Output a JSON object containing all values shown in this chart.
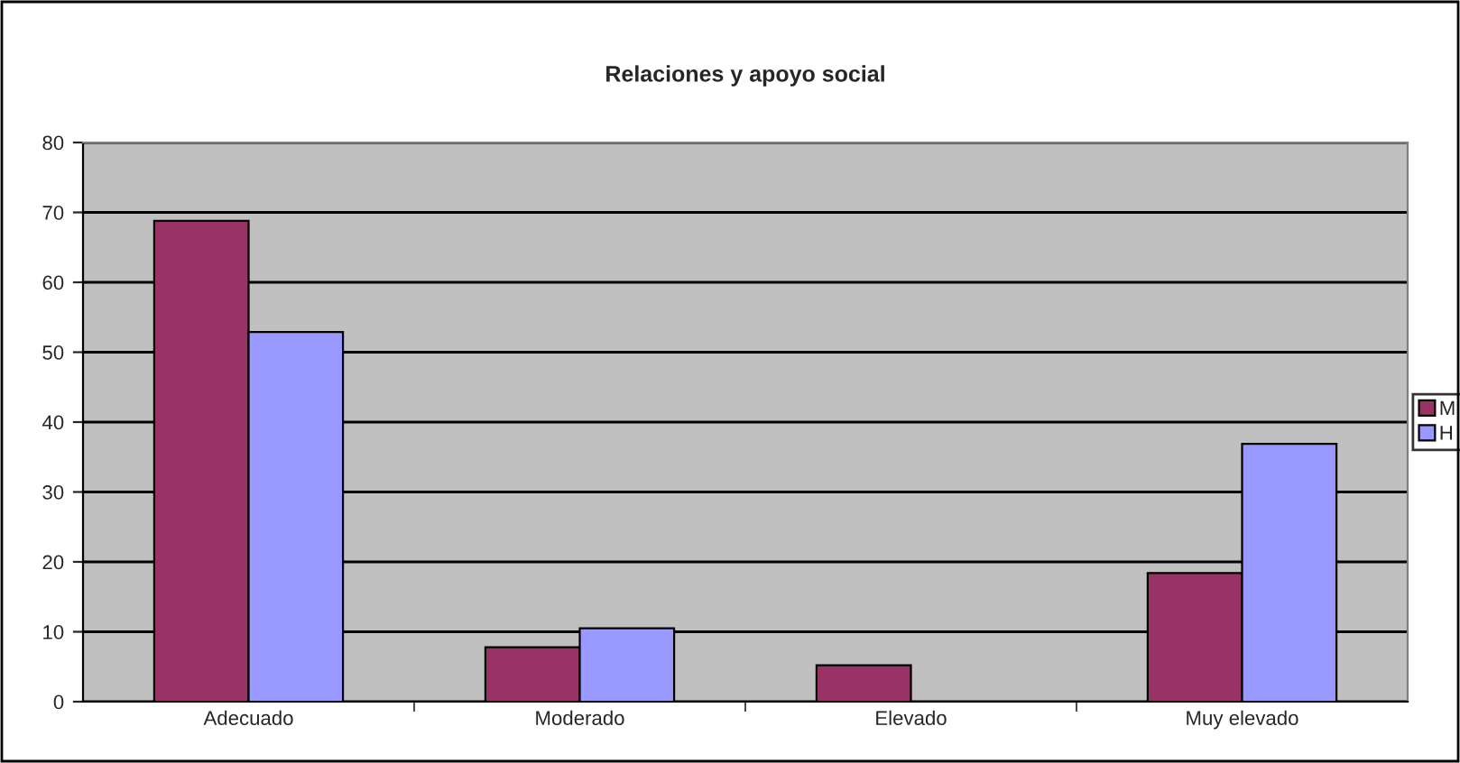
{
  "chart_data": {
    "type": "bar",
    "title": "Relaciones y apoyo social",
    "categories": [
      "Adecuado",
      "Moderado",
      "Elevado",
      "Muy elevado"
    ],
    "series": [
      {
        "name": "M",
        "color": "#993366",
        "values": [
          68.8,
          7.8,
          5.2,
          18.4
        ]
      },
      {
        "name": "H",
        "color": "#9999ff",
        "values": [
          52.9,
          10.5,
          null,
          36.9
        ]
      }
    ],
    "ylim": [
      0,
      80
    ],
    "yticks": [
      0,
      10,
      20,
      30,
      40,
      50,
      60,
      70,
      80
    ],
    "grid": "y",
    "legend": "right"
  }
}
